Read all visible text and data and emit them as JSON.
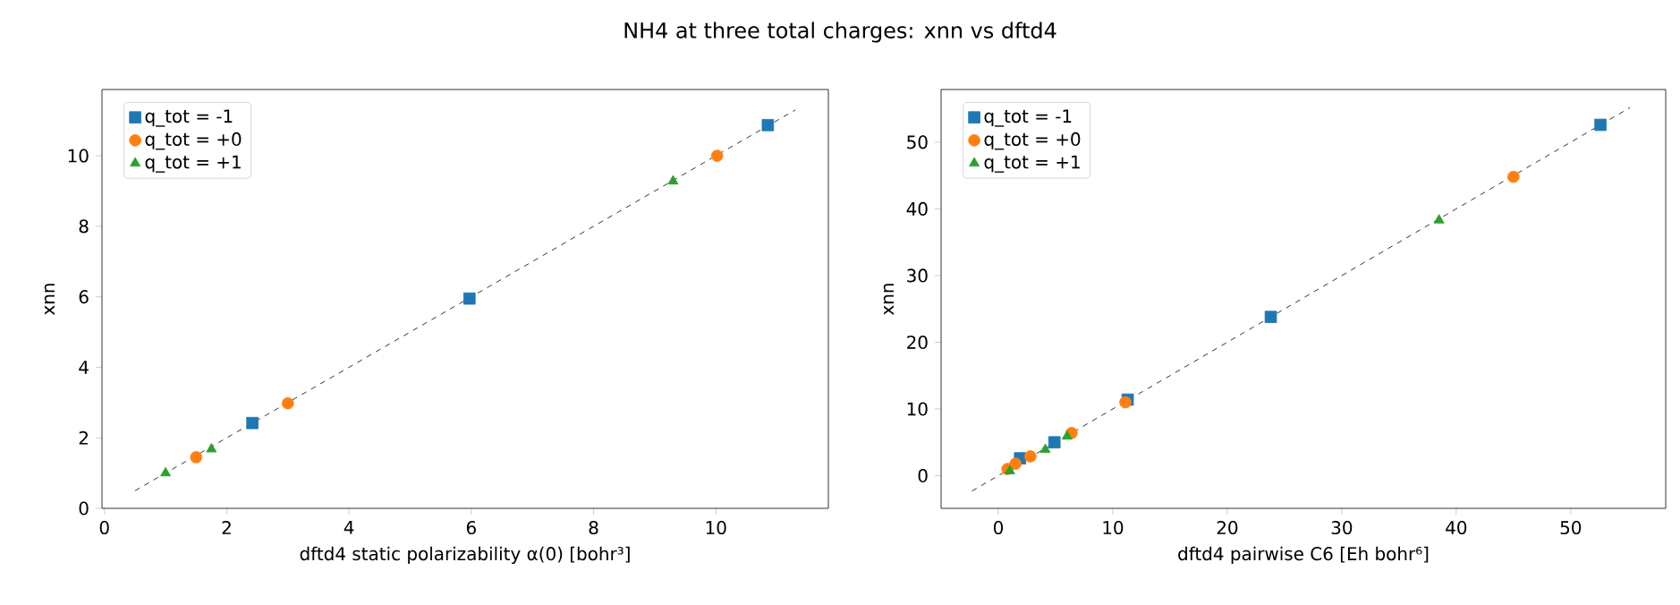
{
  "chart_data": [
    {
      "type": "scatter",
      "title": "NH4 at three total charges: xnn vs dftd4",
      "xlabel": "dftd4 static polarizability α(0) [bohr³]",
      "ylabel": "xnn",
      "xlim": [
        -0.04,
        11.84
      ],
      "ylim": [
        0,
        11.88
      ],
      "xticks": [
        0,
        2,
        4,
        6,
        8,
        10
      ],
      "yticks": [
        0,
        2,
        4,
        6,
        8,
        10
      ],
      "legend": "top left",
      "series": [
        {
          "type": "line",
          "color": "#000000",
          "line_style": "dashed",
          "marker": "none",
          "x": [
            0.5,
            11.3
          ],
          "values": [
            0.5,
            11.3
          ]
        },
        {
          "name": "q_tot = -1",
          "color": "#1f77b4",
          "marker": "square",
          "x": [
            2.42,
            5.97,
            10.85
          ],
          "values": [
            2.42,
            5.95,
            10.87
          ]
        },
        {
          "name": "q_tot = +0",
          "color": "#ff7f0e",
          "marker": "circle",
          "x": [
            1.5,
            3.0,
            10.02
          ],
          "values": [
            1.45,
            2.98,
            10.0
          ]
        },
        {
          "name": "q_tot = +1",
          "color": "#2ca02c",
          "marker": "triangle",
          "x": [
            1.0,
            1.75,
            9.3
          ],
          "values": [
            1.0,
            1.68,
            9.28
          ]
        }
      ]
    },
    {
      "type": "scatter",
      "xlabel": "dftd4 pairwise C6 [Eh bohr⁶]",
      "ylabel": "xnn",
      "xlim": [
        -5.0,
        58.3
      ],
      "ylim": [
        -4.9,
        57.9
      ],
      "xticks": [
        0,
        10,
        20,
        30,
        40,
        50
      ],
      "yticks": [
        0,
        10,
        20,
        30,
        40,
        50
      ],
      "legend": "top left",
      "series": [
        {
          "type": "line",
          "color": "#000000",
          "line_style": "dashed",
          "marker": "none",
          "x": [
            -2.3,
            55.2
          ],
          "values": [
            -2.3,
            55.2
          ]
        },
        {
          "name": "q_tot = -1",
          "color": "#1f77b4",
          "marker": "square",
          "x": [
            52.6,
            23.8,
            11.3,
            4.9,
            1.9
          ],
          "values": [
            52.6,
            23.8,
            11.4,
            5.0,
            2.6
          ]
        },
        {
          "name": "q_tot = +0",
          "color": "#ff7f0e",
          "marker": "circle",
          "x": [
            45.0,
            11.1,
            6.4,
            2.8,
            1.5,
            0.8
          ],
          "values": [
            44.8,
            11.0,
            6.4,
            2.9,
            1.8,
            1.0
          ]
        },
        {
          "name": "q_tot = +1",
          "color": "#2ca02c",
          "marker": "triangle",
          "x": [
            38.5,
            6.0,
            4.1,
            1.0
          ],
          "values": [
            38.3,
            5.9,
            3.9,
            0.7
          ]
        }
      ]
    }
  ]
}
